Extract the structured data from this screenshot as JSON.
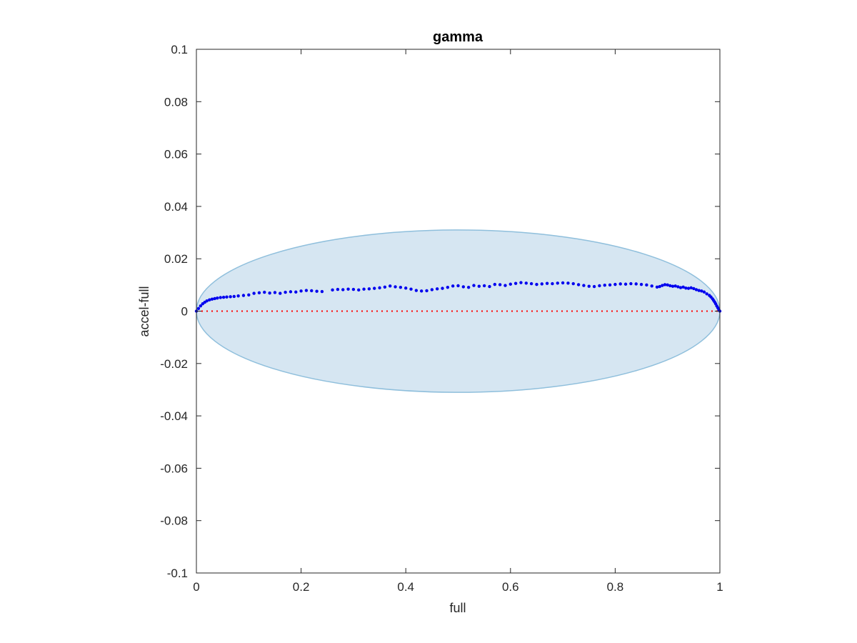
{
  "chart_data": {
    "type": "scatter",
    "title": "gamma",
    "xlabel": "full",
    "ylabel": "accel-full",
    "xlim": [
      0,
      1
    ],
    "ylim": [
      -0.1,
      0.1
    ],
    "xticks": [
      0,
      0.2,
      0.4,
      0.6,
      0.8,
      1
    ],
    "xtick_labels": [
      "0",
      "0.2",
      "0.4",
      "0.6",
      "0.8",
      "1"
    ],
    "yticks": [
      -0.1,
      -0.08,
      -0.06,
      -0.04,
      -0.02,
      0,
      0.02,
      0.04,
      0.06,
      0.08,
      0.1
    ],
    "ytick_labels": [
      "-0.1",
      "-0.08",
      "-0.06",
      "-0.04",
      "-0.02",
      "0",
      "0.02",
      "0.04",
      "0.06",
      "0.08",
      "0.1"
    ],
    "grid": false,
    "colors": {
      "points": "#0000ee",
      "reference_line": "#ff0000",
      "region_fill": "#d6e6f2",
      "region_edge": "#8fbfdc",
      "axes": "#262626"
    },
    "reference_line": {
      "y": 0,
      "style": "dotted"
    },
    "region": {
      "shape": "ellipse",
      "center": [
        0.5,
        0
      ],
      "semi_axes": [
        0.5,
        0.031
      ]
    },
    "series": [
      {
        "x": [
          0.0,
          0.004,
          0.008,
          0.012,
          0.016,
          0.02,
          0.025,
          0.03,
          0.035,
          0.04,
          0.046,
          0.052,
          0.058,
          0.065,
          0.072,
          0.08,
          0.09,
          0.1,
          0.11,
          0.12,
          0.13,
          0.14,
          0.15,
          0.16,
          0.17,
          0.18,
          0.19,
          0.2,
          0.21,
          0.22,
          0.23,
          0.24,
          0.26,
          0.27,
          0.28,
          0.29,
          0.3,
          0.31,
          0.32,
          0.33,
          0.34,
          0.35,
          0.36,
          0.37,
          0.38,
          0.39,
          0.4,
          0.41,
          0.42,
          0.43,
          0.44,
          0.45,
          0.46,
          0.47,
          0.48,
          0.49,
          0.5,
          0.51,
          0.52,
          0.53,
          0.54,
          0.55,
          0.56,
          0.57,
          0.58,
          0.59,
          0.6,
          0.61,
          0.62,
          0.63,
          0.64,
          0.65,
          0.66,
          0.67,
          0.68,
          0.69,
          0.7,
          0.71,
          0.72,
          0.73,
          0.74,
          0.75,
          0.76,
          0.77,
          0.78,
          0.79,
          0.8,
          0.81,
          0.82,
          0.83,
          0.84,
          0.85,
          0.86,
          0.87,
          0.88,
          0.885,
          0.89,
          0.895,
          0.9,
          0.905,
          0.91,
          0.915,
          0.92,
          0.925,
          0.93,
          0.935,
          0.94,
          0.945,
          0.95,
          0.955,
          0.96,
          0.965,
          0.97,
          0.975,
          0.98,
          0.983,
          0.986,
          0.988,
          0.99,
          0.992,
          0.994,
          0.996,
          0.998,
          1.0
        ],
        "y": [
          0.0,
          0.001,
          0.002,
          0.0028,
          0.0034,
          0.0039,
          0.0043,
          0.0046,
          0.0048,
          0.005,
          0.0052,
          0.0053,
          0.0054,
          0.0055,
          0.0056,
          0.0058,
          0.006,
          0.0062,
          0.0068,
          0.007,
          0.0072,
          0.0069,
          0.0071,
          0.0068,
          0.0072,
          0.0074,
          0.0073,
          0.0077,
          0.0079,
          0.0078,
          0.0076,
          0.0075,
          0.0081,
          0.0083,
          0.0082,
          0.0084,
          0.0083,
          0.0081,
          0.0084,
          0.0085,
          0.0087,
          0.0089,
          0.0092,
          0.0096,
          0.0093,
          0.0091,
          0.0088,
          0.0084,
          0.0079,
          0.0077,
          0.0078,
          0.0082,
          0.0085,
          0.0087,
          0.0091,
          0.0096,
          0.0097,
          0.0093,
          0.0091,
          0.0098,
          0.0095,
          0.0097,
          0.0094,
          0.0102,
          0.0101,
          0.0098,
          0.0103,
          0.0106,
          0.0109,
          0.0107,
          0.0105,
          0.0102,
          0.0104,
          0.0106,
          0.0105,
          0.0107,
          0.0108,
          0.0107,
          0.0105,
          0.0101,
          0.0098,
          0.0095,
          0.0094,
          0.0097,
          0.0099,
          0.01,
          0.0102,
          0.0104,
          0.0103,
          0.0105,
          0.0104,
          0.0102,
          0.01,
          0.0096,
          0.0092,
          0.0094,
          0.0098,
          0.0101,
          0.01,
          0.0097,
          0.0095,
          0.0096,
          0.0093,
          0.009,
          0.0092,
          0.0088,
          0.0087,
          0.0089,
          0.0086,
          0.0082,
          0.0079,
          0.0077,
          0.0073,
          0.0066,
          0.006,
          0.0054,
          0.0047,
          0.0041,
          0.0035,
          0.0028,
          0.002,
          0.0013,
          0.0006,
          0.0
        ]
      }
    ]
  }
}
